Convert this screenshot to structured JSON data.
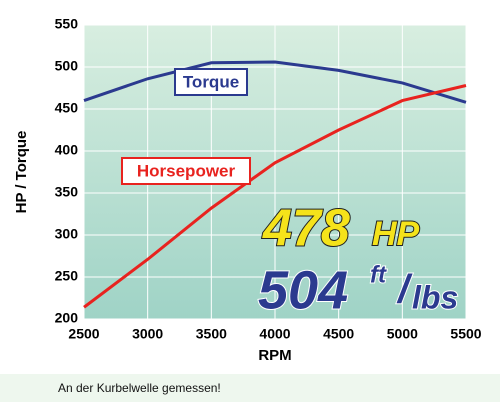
{
  "chart_data": {
    "type": "line",
    "xlabel": "RPM",
    "ylabel": "HP / Torque",
    "x": [
      2500,
      3000,
      3500,
      4000,
      4500,
      5000,
      5500
    ],
    "series": [
      {
        "name": "Torque",
        "color": "#2b3a8f",
        "values": [
          460,
          486,
          505,
          506,
          496,
          481,
          458
        ]
      },
      {
        "name": "Horsepower",
        "color": "#e8231f",
        "values": [
          214,
          271,
          332,
          386,
          425,
          460,
          478
        ]
      }
    ],
    "xlim": [
      2500,
      5500
    ],
    "xticks": [
      2500,
      3000,
      3500,
      4000,
      4500,
      5000,
      5500
    ],
    "ylim": [
      200,
      550
    ],
    "yticks": [
      200,
      250,
      300,
      350,
      400,
      450,
      500,
      550
    ],
    "grid": true,
    "annotations": {
      "hp_value": "478",
      "hp_unit": "HP",
      "torque_value": "504",
      "torque_unit_top": "ft",
      "torque_unit_sep": "/",
      "torque_unit_bottom": "lbs"
    }
  },
  "caption": "An der Kurbelwelle gemessen!"
}
